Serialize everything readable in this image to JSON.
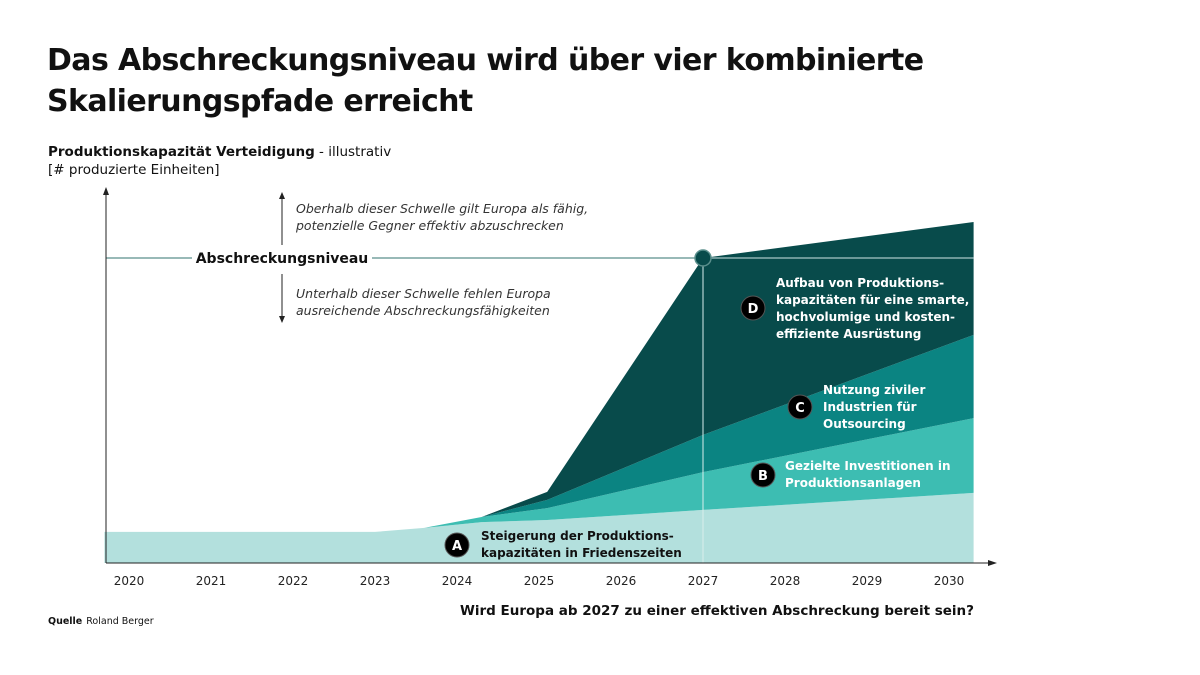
{
  "title": "Das Abschreckungsniveau wird über vier kombinierte Skalierungspfade erreicht",
  "subtitle": {
    "bold": "Produktionskapazität Verteidigung",
    "rest": " - illustrativ",
    "unit": "[# produzierte Einheiten]"
  },
  "question": "Wird Europa ab 2027 zu einer effektiven Abschreckung bereit sein?",
  "source": {
    "label": "Quelle",
    "value": "Roland Berger"
  },
  "chart_data": {
    "type": "area",
    "stacked": true,
    "ylabel": "Produktionskapazität Verteidigung - illustrativ [# produzierte Einheiten]",
    "xlim": [
      2019.7,
      2030.3
    ],
    "ylim": [
      0,
      123
    ],
    "x_ticks": [
      "2020",
      "2021",
      "2022",
      "2023",
      "2024",
      "2025",
      "2026",
      "2027",
      "2028",
      "2029",
      "2030"
    ],
    "x": [
      2019.7,
      2023.0,
      2023.6,
      2024.3,
      2025.1,
      2027.0,
      2030.3
    ],
    "series": [
      {
        "id": "A",
        "label": "Steigerung der Produktions-|kapazitäten in Friedenszeiten",
        "color": "#b3e0dd",
        "values": [
          10.2,
          10.2,
          11.5,
          13.4,
          14.1,
          17.4,
          23.0
        ]
      },
      {
        "id": "B",
        "label": "Gezielte Investitionen in|Produktionsanlagen",
        "color": "#3dbdb2",
        "values": [
          0,
          0,
          0,
          1.7,
          3.9,
          12.4,
          24.5
        ]
      },
      {
        "id": "C",
        "label": "Nutzung ziviler|Industrien für|Outsourcing",
        "color": "#0b8482",
        "values": [
          0,
          0,
          0,
          0,
          2.7,
          12.2,
          27.3
        ]
      },
      {
        "id": "D",
        "label": "Aufbau von Produktions-|kapazitäten für eine smarte,|hochvolumige und kosten-|effiziente Ausrüstung",
        "color": "#084b4b",
        "values": [
          0,
          0,
          0,
          0,
          2.6,
          58.0,
          37.0
        ]
      }
    ],
    "threshold": {
      "value": 100,
      "label": "Abschreckungsniveau",
      "marker_year": 2027,
      "color": "#5a8f8c"
    },
    "annotations": {
      "above": [
        "Oberhalb dieser Schwelle gilt Europa als fähig,",
        "potenzielle Gegner effektiv abzuschrecken"
      ],
      "below": [
        "Unterhalb dieser Schwelle fehlen Europa",
        "ausreichende Abschreckungsfähigkeiten"
      ]
    },
    "grid": false
  }
}
